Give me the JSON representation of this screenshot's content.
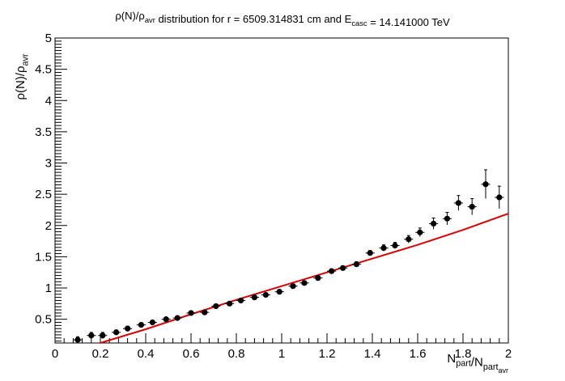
{
  "chart_data": {
    "type": "scatter",
    "title": {
      "parts": [
        {
          "t": "ρ(N)/ρ",
          "sub": false
        },
        {
          "t": "avr",
          "sub": true
        },
        {
          "t": " distribution for r = 6509.314831 cm and E",
          "sub": false
        },
        {
          "t": "casc",
          "sub": true
        },
        {
          "t": " = 14.141000 TeV",
          "sub": false
        }
      ]
    },
    "xlabel": {
      "parts": [
        {
          "t": "N",
          "sub": false
        },
        {
          "t": "part",
          "sub": true
        },
        {
          "t": "/N",
          "sub": false
        },
        {
          "t": "part",
          "sub": true
        },
        {
          "t": "avr",
          "subsub": true
        }
      ]
    },
    "ylabel": {
      "parts": [
        {
          "t": "ρ(N)/ρ",
          "sub": false
        },
        {
          "t": "avr",
          "sub": true
        }
      ]
    },
    "xlim": [
      0,
      2
    ],
    "ylim": [
      0.12,
      5
    ],
    "x_ticks": [
      0,
      0.2,
      0.4,
      0.6,
      0.8,
      1,
      1.2,
      1.4,
      1.6,
      1.8,
      2
    ],
    "x_tick_labels": [
      "0",
      "0.2",
      "0.4",
      "0.6",
      "0.8",
      "1",
      "1.2",
      "1.4",
      "1.6",
      "1.8",
      "2"
    ],
    "y_ticks": [
      0.5,
      1,
      1.5,
      2,
      2.5,
      3,
      3.5,
      4,
      4.5,
      5
    ],
    "y_tick_labels": [
      "0.5",
      "1",
      "1.5",
      "2",
      "2.5",
      "3",
      "3.5",
      "4",
      "4.5",
      "5"
    ],
    "grid": false,
    "colors": {
      "points": "#000000",
      "fit_line": "#dd0000"
    },
    "series": [
      {
        "kind": "points_with_errors",
        "x_err": 0.02,
        "points": [
          {
            "x": 0.1,
            "y": 0.17,
            "ey": 0.05
          },
          {
            "x": 0.16,
            "y": 0.24,
            "ey": 0.05
          },
          {
            "x": 0.21,
            "y": 0.24,
            "ey": 0.05
          },
          {
            "x": 0.27,
            "y": 0.29,
            "ey": 0.04
          },
          {
            "x": 0.32,
            "y": 0.35,
            "ey": 0.04
          },
          {
            "x": 0.38,
            "y": 0.41,
            "ey": 0.035
          },
          {
            "x": 0.43,
            "y": 0.45,
            "ey": 0.03
          },
          {
            "x": 0.49,
            "y": 0.5,
            "ey": 0.03
          },
          {
            "x": 0.54,
            "y": 0.52,
            "ey": 0.03
          },
          {
            "x": 0.6,
            "y": 0.6,
            "ey": 0.03
          },
          {
            "x": 0.66,
            "y": 0.61,
            "ey": 0.03
          },
          {
            "x": 0.71,
            "y": 0.71,
            "ey": 0.03
          },
          {
            "x": 0.77,
            "y": 0.75,
            "ey": 0.03
          },
          {
            "x": 0.82,
            "y": 0.8,
            "ey": 0.03
          },
          {
            "x": 0.88,
            "y": 0.85,
            "ey": 0.03
          },
          {
            "x": 0.93,
            "y": 0.89,
            "ey": 0.03
          },
          {
            "x": 0.99,
            "y": 0.94,
            "ey": 0.03
          },
          {
            "x": 1.05,
            "y": 1.03,
            "ey": 0.03
          },
          {
            "x": 1.1,
            "y": 1.08,
            "ey": 0.03
          },
          {
            "x": 1.16,
            "y": 1.16,
            "ey": 0.03
          },
          {
            "x": 1.22,
            "y": 1.27,
            "ey": 0.035
          },
          {
            "x": 1.27,
            "y": 1.32,
            "ey": 0.035
          },
          {
            "x": 1.33,
            "y": 1.38,
            "ey": 0.04
          },
          {
            "x": 1.39,
            "y": 1.56,
            "ey": 0.04
          },
          {
            "x": 1.45,
            "y": 1.64,
            "ey": 0.05
          },
          {
            "x": 1.5,
            "y": 1.68,
            "ey": 0.05
          },
          {
            "x": 1.56,
            "y": 1.78,
            "ey": 0.06
          },
          {
            "x": 1.61,
            "y": 1.89,
            "ey": 0.07
          },
          {
            "x": 1.67,
            "y": 2.03,
            "ey": 0.09
          },
          {
            "x": 1.73,
            "y": 2.11,
            "ey": 0.1
          },
          {
            "x": 1.78,
            "y": 2.36,
            "ey": 0.12
          },
          {
            "x": 1.84,
            "y": 2.3,
            "ey": 0.13
          },
          {
            "x": 1.9,
            "y": 2.66,
            "ey": 0.23
          },
          {
            "x": 1.96,
            "y": 2.45,
            "ey": 0.18
          }
        ]
      },
      {
        "kind": "line",
        "points": [
          {
            "x": 0.2,
            "y": 0.12
          },
          {
            "x": 0.4,
            "y": 0.34
          },
          {
            "x": 0.6,
            "y": 0.58
          },
          {
            "x": 0.8,
            "y": 0.81
          },
          {
            "x": 1,
            "y": 1.03
          },
          {
            "x": 1.2,
            "y": 1.25
          },
          {
            "x": 1.4,
            "y": 1.47
          },
          {
            "x": 1.6,
            "y": 1.69
          },
          {
            "x": 1.8,
            "y": 1.93
          },
          {
            "x": 2,
            "y": 2.19
          }
        ]
      }
    ]
  }
}
